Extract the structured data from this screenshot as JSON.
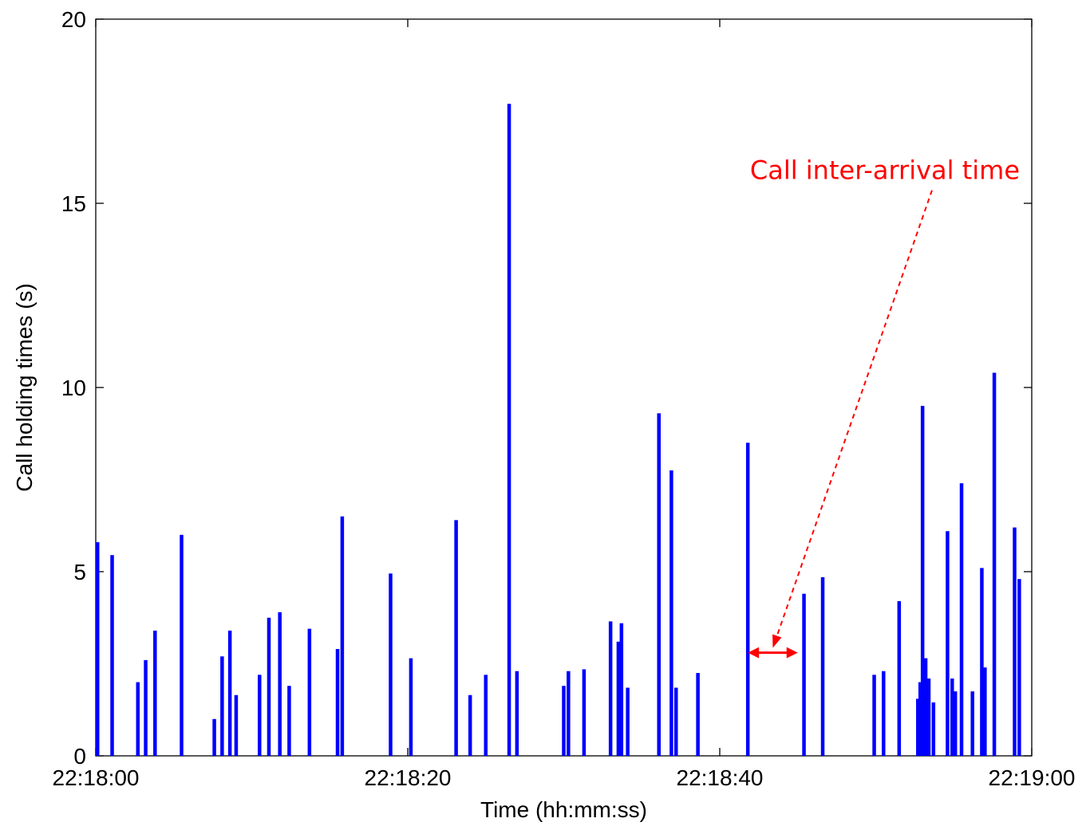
{
  "chart_data": {
    "type": "bar",
    "xlabel": "Time (hh:mm:ss)",
    "ylabel": "Call holding times (s)",
    "xlim": [
      0,
      60
    ],
    "ylim": [
      0,
      20
    ],
    "x_unit": "seconds after 22:18:00",
    "x_ticks": [
      {
        "value": 0,
        "label": "22:18:00"
      },
      {
        "value": 20,
        "label": "22:18:20"
      },
      {
        "value": 40,
        "label": "22:18:40"
      },
      {
        "value": 60,
        "label": "22:19:00"
      }
    ],
    "y_ticks": [
      {
        "value": 0,
        "label": "0"
      },
      {
        "value": 5,
        "label": "5"
      },
      {
        "value": 10,
        "label": "10"
      },
      {
        "value": 15,
        "label": "15"
      },
      {
        "value": 20,
        "label": "20"
      }
    ],
    "bar_color": "#0000ff",
    "grid": false,
    "series": [
      {
        "x": [
          0.05,
          1.05,
          2.7,
          3.2,
          3.8,
          5.5,
          7.6,
          8.1,
          8.6,
          9.0,
          10.5,
          11.1,
          11.8,
          12.4,
          13.7,
          15.5,
          15.8,
          18.9,
          20.2,
          23.1,
          24.0,
          25.0,
          26.5,
          27.0,
          30.0,
          30.3,
          31.3,
          33.0,
          33.5,
          33.7,
          34.1,
          36.1,
          36.9,
          37.2,
          38.6,
          41.8,
          45.4,
          46.6,
          49.9,
          50.5,
          51.5,
          52.7,
          52.85,
          53.0,
          53.2,
          53.4,
          53.7,
          54.6,
          54.9,
          55.1,
          55.5,
          56.2,
          56.8,
          57.0,
          57.6,
          58.9,
          59.2
        ],
        "values": [
          5.8,
          5.45,
          2.0,
          2.6,
          3.4,
          6.0,
          1.0,
          2.7,
          3.4,
          1.65,
          2.2,
          3.75,
          3.9,
          1.9,
          3.45,
          2.9,
          6.5,
          4.95,
          2.65,
          6.4,
          1.65,
          2.2,
          17.7,
          2.3,
          1.9,
          2.3,
          2.35,
          3.65,
          3.1,
          3.6,
          1.85,
          9.3,
          7.75,
          1.85,
          2.25,
          8.5,
          4.4,
          4.85,
          2.2,
          2.3,
          4.2,
          1.55,
          2.0,
          9.5,
          2.65,
          2.1,
          1.45,
          6.1,
          2.1,
          1.75,
          7.4,
          1.75,
          5.1,
          2.4,
          10.4,
          6.2,
          4.8
        ]
      }
    ],
    "annotation": {
      "text": "Call inter-arrival time",
      "color": "#ff0000",
      "x": 52.5,
      "y": 15.7,
      "arrow_between": [
        41.8,
        45.0
      ],
      "arrow_y": 2.8
    }
  }
}
